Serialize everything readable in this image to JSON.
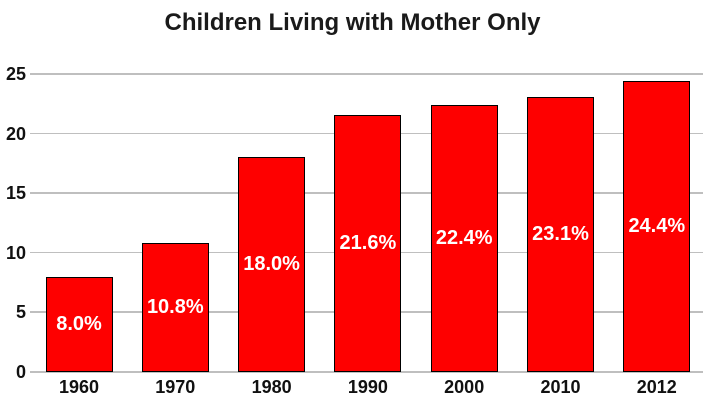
{
  "title": "Children Living with Mother Only",
  "chart_data": {
    "type": "bar",
    "title": "Children Living with Mother Only",
    "categories": [
      "1960",
      "1970",
      "1980",
      "1990",
      "2000",
      "2010",
      "2012"
    ],
    "values": [
      8.0,
      10.8,
      18.0,
      21.6,
      22.4,
      23.1,
      24.4
    ],
    "labels": [
      "8.0%",
      "10.8%",
      "18.0%",
      "21.6%",
      "22.4%",
      "23.1%",
      "24.4%"
    ],
    "yticks": [
      0,
      5,
      10,
      15,
      20,
      25
    ],
    "ylim": [
      0,
      25
    ],
    "xlabel": "",
    "ylabel": "",
    "legend": "none",
    "grid": "horizontal",
    "bar_color": "#FE0000",
    "bar_border_color": "#000000",
    "value_label_color": "#FFFFFF",
    "grid_color": "#BFBFBF",
    "text_color": "#1A1A1A",
    "background": "#FFFFFF"
  }
}
